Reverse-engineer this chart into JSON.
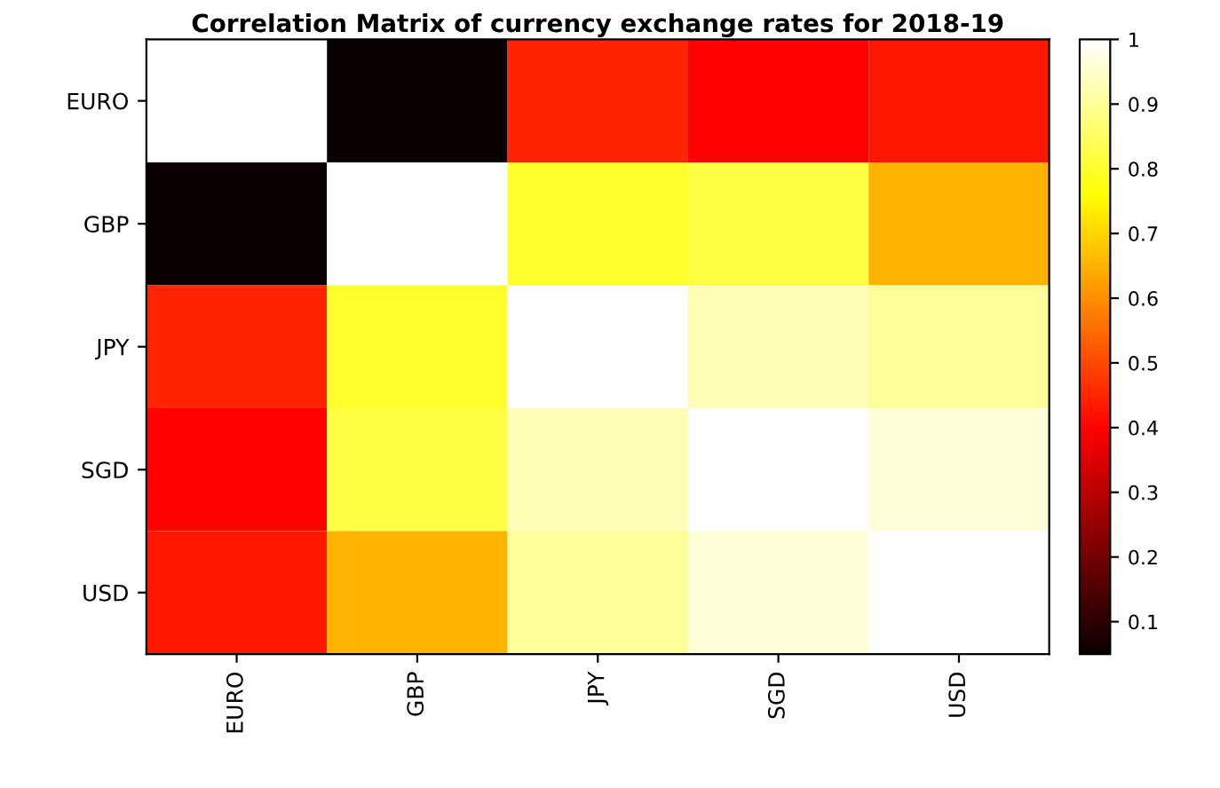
{
  "chart_data": {
    "type": "heatmap",
    "title": "Correlation Matrix of currency exchange rates for 2018-19",
    "categories": [
      "EURO",
      "GBP",
      "JPY",
      "SGD",
      "USD"
    ],
    "y_categories": [
      "EURO",
      "GBP",
      "JPY",
      "SGD",
      "USD"
    ],
    "cells": [
      [
        1,
        0.05,
        0.45,
        0.4,
        0.43
      ],
      [
        0.05,
        1,
        0.8,
        0.82,
        0.65
      ],
      [
        0.45,
        0.8,
        1,
        0.93,
        0.9
      ],
      [
        0.4,
        0.82,
        0.93,
        1,
        0.96
      ],
      [
        0.43,
        0.65,
        0.9,
        0.96,
        1
      ]
    ],
    "clim": [
      0.05,
      1
    ],
    "cticks": [
      0.1,
      0.2,
      0.3,
      0.4,
      0.5,
      0.6,
      0.7,
      0.8,
      0.9,
      1
    ]
  }
}
